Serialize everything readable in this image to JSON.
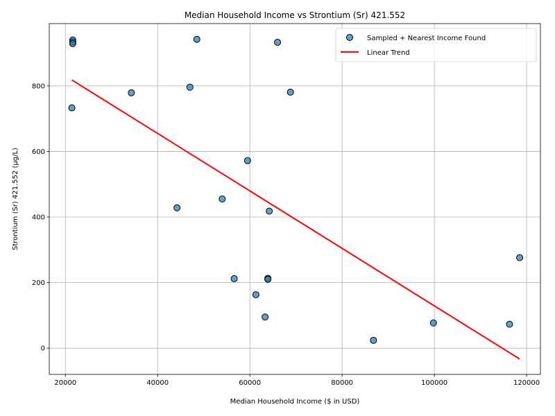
{
  "chart_data": {
    "type": "scatter",
    "title": "Median Household Income vs Strontium (Sr) 421.552",
    "xlabel": "Median Household Income ($ in USD)",
    "ylabel": "Strontium (Sr) 421.552 (µg/L)",
    "xlim": [
      16500,
      123000
    ],
    "ylim": [
      -80,
      990
    ],
    "x_ticks": [
      20000,
      40000,
      60000,
      80000,
      100000,
      120000
    ],
    "x_tick_labels": [
      "20000",
      "40000",
      "60000",
      "80000",
      "100000",
      "120000"
    ],
    "y_ticks": [
      0,
      200,
      400,
      600,
      800
    ],
    "y_tick_labels": [
      "0",
      "200",
      "400",
      "600",
      "800"
    ],
    "grid": true,
    "legend_position": "top-right",
    "series": [
      {
        "name": "Sampled + Nearest Income Found",
        "kind": "scatter",
        "color": "#1f77b4",
        "points": [
          {
            "x": 21600,
            "y": 940
          },
          {
            "x": 21600,
            "y": 934
          },
          {
            "x": 21600,
            "y": 929
          },
          {
            "x": 21400,
            "y": 733
          },
          {
            "x": 34300,
            "y": 779
          },
          {
            "x": 44200,
            "y": 428
          },
          {
            "x": 47000,
            "y": 796
          },
          {
            "x": 48500,
            "y": 942
          },
          {
            "x": 54000,
            "y": 455
          },
          {
            "x": 56600,
            "y": 212
          },
          {
            "x": 59500,
            "y": 572
          },
          {
            "x": 61300,
            "y": 163
          },
          {
            "x": 63300,
            "y": 95
          },
          {
            "x": 63900,
            "y": 213
          },
          {
            "x": 63900,
            "y": 210
          },
          {
            "x": 64200,
            "y": 418
          },
          {
            "x": 66000,
            "y": 933
          },
          {
            "x": 68800,
            "y": 781
          },
          {
            "x": 86800,
            "y": 24
          },
          {
            "x": 99800,
            "y": 77
          },
          {
            "x": 116300,
            "y": 73
          },
          {
            "x": 118500,
            "y": 276
          }
        ]
      },
      {
        "name": "Linear Trend",
        "kind": "line",
        "color": "#ff0000",
        "points": [
          {
            "x": 21400,
            "y": 818
          },
          {
            "x": 118500,
            "y": -33
          }
        ]
      }
    ]
  }
}
